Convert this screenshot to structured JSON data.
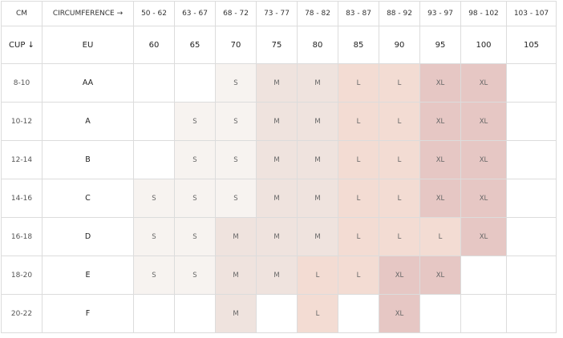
{
  "header": {
    "cm_label": "CM",
    "circ_label": "CIRCUMFERENCE →",
    "cup_label": "CUP ↓",
    "eu_label": "EU",
    "ranges": [
      "50 - 62",
      "63 - 67",
      "68 - 72",
      "73 - 77",
      "78 - 82",
      "83 - 87",
      "88 - 92",
      "93 - 97",
      "98 - 102",
      "103 - 107"
    ],
    "eu_sizes": [
      "60",
      "65",
      "70",
      "75",
      "80",
      "85",
      "90",
      "95",
      "100",
      "105"
    ]
  },
  "rows": [
    {
      "cm": "8-10",
      "cup": "AA",
      "cells": [
        "",
        "",
        "S",
        "M",
        "M",
        "L",
        "L",
        "XL",
        "XL",
        ""
      ]
    },
    {
      "cm": "10-12",
      "cup": "A",
      "cells": [
        "",
        "S",
        "S",
        "M",
        "M",
        "L",
        "L",
        "XL",
        "XL",
        ""
      ]
    },
    {
      "cm": "12-14",
      "cup": "B",
      "cells": [
        "",
        "S",
        "S",
        "M",
        "M",
        "L",
        "L",
        "XL",
        "XL",
        ""
      ]
    },
    {
      "cm": "14-16",
      "cup": "C",
      "cells": [
        "S",
        "S",
        "S",
        "M",
        "M",
        "L",
        "L",
        "XL",
        "XL",
        ""
      ]
    },
    {
      "cm": "16-18",
      "cup": "D",
      "cells": [
        "S",
        "S",
        "M",
        "M",
        "M",
        "L",
        "L",
        "L",
        "XL",
        ""
      ]
    },
    {
      "cm": "18-20",
      "cup": "E",
      "cells": [
        "S",
        "S",
        "M",
        "M",
        "L",
        "L",
        "XL",
        "XL",
        "",
        ""
      ]
    },
    {
      "cm": "20-22",
      "cup": "F",
      "cells": [
        "",
        "",
        "M",
        "",
        "L",
        "",
        "XL",
        "",
        "",
        ""
      ]
    }
  ],
  "colors": {
    "S": "#f7f3f0",
    "M": "#efe3de",
    "L": "#f3dcd3",
    "XL": "#e6c7c4",
    "border": "#dcdcdc"
  }
}
